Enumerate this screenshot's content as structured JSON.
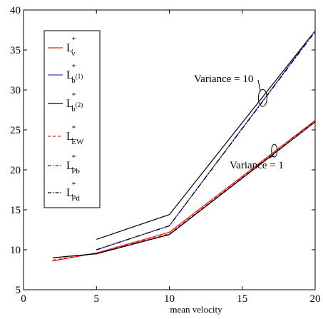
{
  "chart_data": {
    "type": "line",
    "xlabel": "mean velocity",
    "ylabel": "",
    "xlim": [
      0,
      20
    ],
    "ylim": [
      5,
      40
    ],
    "x_ticks": [
      0,
      5,
      10,
      15,
      20
    ],
    "y_ticks": [
      5,
      10,
      15,
      20,
      25,
      30,
      35,
      40
    ],
    "grid": false,
    "legend_position": "top-left",
    "legend": [
      {
        "base": "L",
        "sup": "*",
        "sub": "ν",
        "color": "#e41a1c",
        "dash": "solid"
      },
      {
        "base": "L",
        "sup": "*",
        "sub": "b",
        "subsup": "(1)",
        "color": "#3a3ad6",
        "dash": "solid"
      },
      {
        "base": "L",
        "sup": "*",
        "sub": "b",
        "subsup": "(2)",
        "color": "#000000",
        "dash": "solid"
      },
      {
        "base": "L",
        "sup": "*",
        "sub": "EW",
        "color": "#e41a1c",
        "dash": "dashed"
      },
      {
        "base": "L",
        "sup": "*",
        "sub": "Pb",
        "color": "#1a1acc",
        "dash": "dashdot"
      },
      {
        "base": "L",
        "sup": "*",
        "sub": "Pd",
        "color": "#000000",
        "dash": "dashdot"
      }
    ],
    "annotations": [
      {
        "text": "Variance = 10",
        "x": 16.4,
        "y": 29.0
      },
      {
        "text": "Variance = 1",
        "x": 17.2,
        "y": 22.4
      }
    ],
    "groups": [
      {
        "name": "Variance = 10",
        "x": [
          5,
          10,
          20
        ],
        "series": [
          {
            "name": "L*_b(2)",
            "color": "#000000",
            "dash": "solid",
            "values": [
              11.3,
              14.4,
              37.4
            ]
          },
          {
            "name": "L*_b(1)",
            "color": "#3a3ad6",
            "dash": "solid",
            "values": [
              10.0,
              13.0,
              37.4
            ]
          },
          {
            "name": "L*_Pb",
            "color": "#1a1acc",
            "dash": "dashdot",
            "values": [
              10.0,
              13.0,
              37.3
            ]
          },
          {
            "name": "L*_Pd",
            "color": "#000000",
            "dash": "dashdot",
            "values": [
              10.0,
              13.0,
              37.3
            ]
          }
        ]
      },
      {
        "name": "Variance = 1",
        "x": [
          2,
          5,
          10,
          20
        ],
        "series": [
          {
            "name": "L*_ν",
            "color": "#e41a1c",
            "dash": "solid",
            "values": [
              8.6,
              9.6,
              12.2,
              26.2
            ]
          },
          {
            "name": "L*_EW",
            "color": "#e41a1c",
            "dash": "dashed",
            "values": [
              8.7,
              9.6,
              12.0,
              26.1
            ]
          },
          {
            "name": "L*_b(2)",
            "color": "#000000",
            "dash": "solid",
            "values": [
              9.0,
              9.5,
              11.9,
              26.0
            ]
          },
          {
            "name": "L*_Pd",
            "color": "#000000",
            "dash": "dashdot",
            "values": [
              9.0,
              9.5,
              11.9,
              26.0
            ]
          }
        ]
      }
    ]
  }
}
